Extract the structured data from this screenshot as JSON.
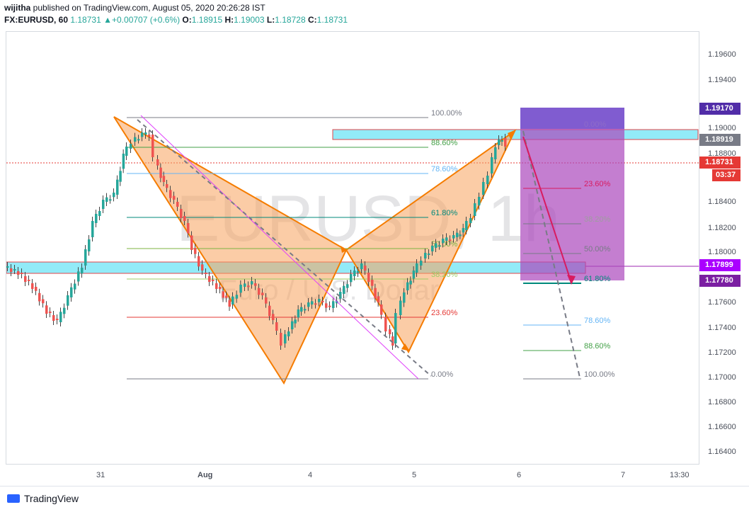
{
  "header": {
    "publisher_user": "wijitha",
    "publisher_text": " published on TradingView.com, August 05, 2020 20:26:28 IST",
    "symbol": "FX:EURUSD, 60",
    "last": "1.18731",
    "change": "+0.00707 (+0.6%)",
    "o_label": "O:",
    "o_value": "1.18915",
    "h_label": "H:",
    "h_value": "1.19003",
    "l_label": "L:",
    "l_value": "1.18728",
    "c_label": "C:",
    "c_value": "1.18731"
  },
  "watermark": {
    "symbol": "EURUSD, 1h",
    "name": "Euro / U.S. Dollar"
  },
  "y_axis": {
    "ticks": [
      "1.19600",
      "1.19400",
      "1.19000",
      "1.18800",
      "1.18400",
      "1.18200",
      "1.18000",
      "1.17600",
      "1.17400",
      "1.17200",
      "1.17000",
      "1.16800",
      "1.16600",
      "1.16400"
    ]
  },
  "price_tags": {
    "top": "1.19170",
    "fib_high": "1.18919",
    "current": "1.18731",
    "countdown": "03:37",
    "target": "1.17899",
    "stop": "1.17780"
  },
  "x_axis": {
    "ticks": [
      "31",
      "Aug",
      "4",
      "5",
      "6",
      "7",
      "13:30"
    ]
  },
  "fib_left": [
    "100.00%",
    "88.60%",
    "78.60%",
    "61.80%",
    "50.00%",
    "38.20%",
    "23.60%",
    "0.00%"
  ],
  "fib_right": [
    "0.00%",
    "23.60%",
    "38.20%",
    "50.00%",
    "61.80%",
    "78.60%",
    "88.60%",
    "100.00%"
  ],
  "colors": {
    "up": "#26a69a",
    "down": "#ef5350",
    "pattern": "#f7a35c",
    "position_box": "#9c27b0",
    "zone": "#7fe7f7"
  },
  "footer": {
    "brand": "TradingView"
  }
}
